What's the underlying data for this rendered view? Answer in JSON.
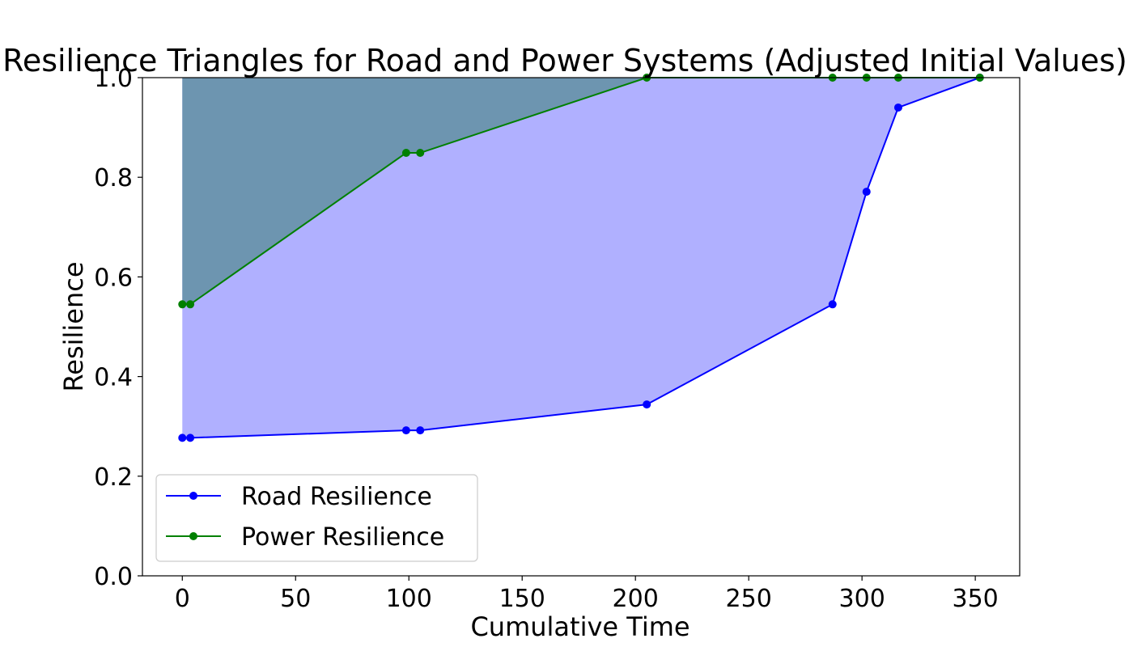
{
  "chart_data": {
    "type": "line",
    "title": "Resilience Triangles for Road and Power Systems (Adjusted Initial Values)",
    "xlabel": "Cumulative Time",
    "ylabel": "Resilience",
    "xlim": [
      -17.6,
      369.6
    ],
    "ylim": [
      0.0,
      1.0
    ],
    "xticks": [
      0,
      50,
      100,
      150,
      200,
      250,
      300,
      350
    ],
    "yticks": [
      0.0,
      0.2,
      0.4,
      0.6,
      0.8,
      1.0
    ],
    "xtick_labels": [
      "0",
      "50",
      "100",
      "150",
      "200",
      "250",
      "300",
      "350"
    ],
    "ytick_labels": [
      "0.0",
      "0.2",
      "0.4",
      "0.6",
      "0.8",
      "1.0"
    ],
    "grid": false,
    "legend_position": "lower-left",
    "fill_to": 1.0,
    "series": [
      {
        "name": "Road Resilience",
        "color": "#0000ff",
        "fill_color": "#b0b0ff",
        "x": [
          0,
          3.5,
          98.8,
          105,
          205,
          287,
          302,
          316,
          352
        ],
        "y": [
          0.277,
          0.277,
          0.292,
          0.292,
          0.344,
          0.545,
          0.771,
          0.94,
          1.0
        ]
      },
      {
        "name": "Power Resilience",
        "color": "#008000",
        "fill_color": "#5a8d9a",
        "x": [
          0,
          3.5,
          98.8,
          105,
          205,
          287,
          302,
          316,
          352
        ],
        "y": [
          0.545,
          0.545,
          0.849,
          0.849,
          1.0,
          1.0,
          1.0,
          1.0,
          1.0
        ]
      }
    ]
  }
}
